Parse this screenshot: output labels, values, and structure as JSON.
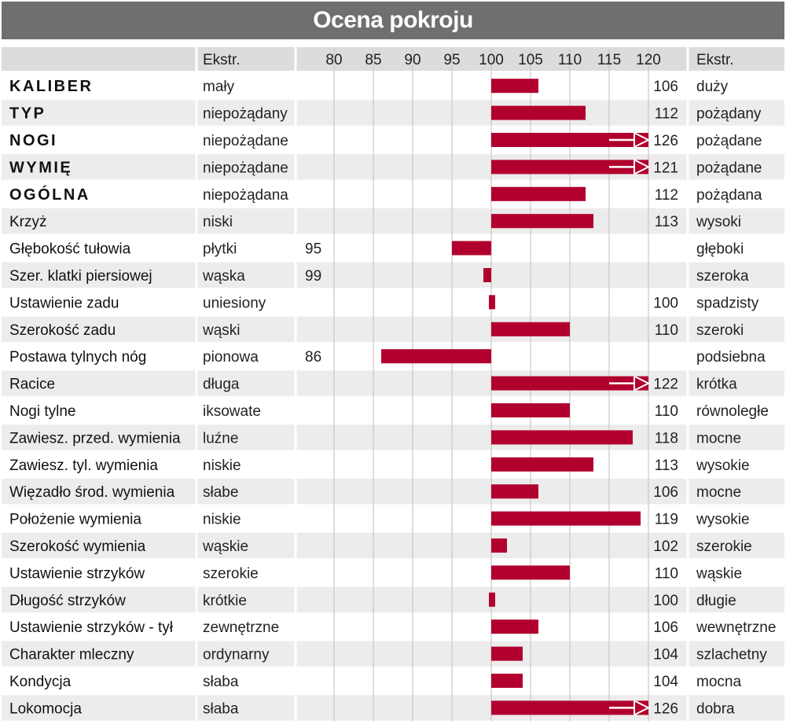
{
  "title": "Ocena pokroju",
  "header": {
    "left_extreme_label": "Ekstr.",
    "right_extreme_label": "Ekstr."
  },
  "colors": {
    "title_bg": "#6f6f6f",
    "row_shade": "#ececec",
    "bar": "#b2002e",
    "grid": "#c8c8c8",
    "header_bg": "#dcdcdc"
  },
  "chart_data": {
    "type": "bar",
    "orientation": "horizontal",
    "baseline": 100,
    "xlim": [
      80,
      120
    ],
    "ticks": [
      80,
      85,
      90,
      95,
      100,
      105,
      110,
      115,
      120
    ],
    "rows": [
      {
        "trait": "KALIBER",
        "bold": true,
        "left": "mały",
        "right": "duży",
        "value": 106
      },
      {
        "trait": "TYP",
        "bold": true,
        "left": "niepożądany",
        "right": "pożądany",
        "value": 112
      },
      {
        "trait": "NOGI",
        "bold": true,
        "left": "niepożądane",
        "right": "pożądane",
        "value": 126,
        "overflow": true
      },
      {
        "trait": "WYMIĘ",
        "bold": true,
        "left": "niepożądane",
        "right": "pożądane",
        "value": 121,
        "overflow": true
      },
      {
        "trait": "OGÓLNA",
        "bold": true,
        "left": "niepożądana",
        "right": "pożądana",
        "value": 112
      },
      {
        "trait": "Krzyż",
        "left": "niski",
        "right": "wysoki",
        "value": 113
      },
      {
        "trait": "Głębokość tułowia",
        "left": "płytki",
        "right": "głęboki",
        "value": 95
      },
      {
        "trait": "Szer. klatki piersiowej",
        "left": "wąska",
        "right": "szeroka",
        "value": 99
      },
      {
        "trait": "Ustawienie zadu",
        "left": "uniesiony",
        "right": "spadzisty",
        "value": 100
      },
      {
        "trait": "Szerokość zadu",
        "left": "wąski",
        "right": "szeroki",
        "value": 110
      },
      {
        "trait": "Postawa tylnych nóg",
        "left": "pionowa",
        "right": "podsiebna",
        "value": 86
      },
      {
        "trait": "Racice",
        "left": "długa",
        "right": "krótka",
        "value": 122,
        "overflow": true
      },
      {
        "trait": "Nogi tylne",
        "left": "iksowate",
        "right": "równoległe",
        "value": 110
      },
      {
        "trait": "Zawiesz. przed. wymienia",
        "left": "luźne",
        "right": "mocne",
        "value": 118
      },
      {
        "trait": "Zawiesz. tyl. wymienia",
        "left": "niskie",
        "right": "wysokie",
        "value": 113
      },
      {
        "trait": "Więzadło środ. wymienia",
        "left": "słabe",
        "right": "mocne",
        "value": 106
      },
      {
        "trait": "Położenie wymienia",
        "left": "niskie",
        "right": "wysokie",
        "value": 119
      },
      {
        "trait": "Szerokość wymienia",
        "left": "wąskie",
        "right": "szerokie",
        "value": 102
      },
      {
        "trait": "Ustawienie strzyków",
        "left": "szerokie",
        "right": "wąskie",
        "value": 110
      },
      {
        "trait": "Długość strzyków",
        "left": "krótkie",
        "right": "długie",
        "value": 100
      },
      {
        "trait": "Ustawienie strzyków - tył",
        "left": "zewnętrzne",
        "right": "wewnętrzne",
        "value": 106
      },
      {
        "trait": "Charakter mleczny",
        "left": "ordynarny",
        "right": "szlachetny",
        "value": 104
      },
      {
        "trait": "Kondycja",
        "left": "słaba",
        "right": "mocna",
        "value": 104
      },
      {
        "trait": "Lokomocja",
        "left": "słaba",
        "right": "dobra",
        "value": 126,
        "overflow": true
      }
    ]
  }
}
